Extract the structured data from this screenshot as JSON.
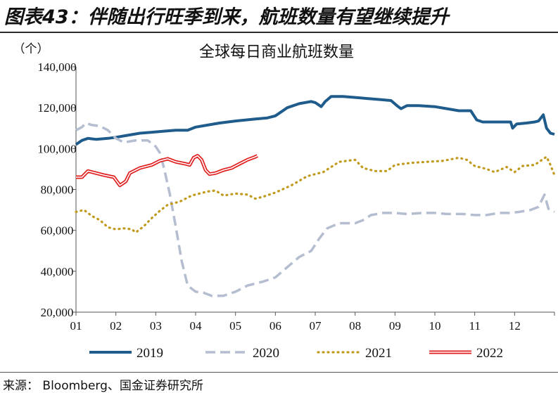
{
  "figure_title": "图表43：伴随出行旺季到来，航班数量有望继续提升",
  "source": "来源： Bloomberg、国金证券研究所",
  "colors": {
    "s2019": "#1f5c8b",
    "s2020": "#b4bed0",
    "s2021": "#c09a1c",
    "s2022": "#e02020",
    "axis": "#555555",
    "text": "#111111"
  },
  "chart_data": {
    "type": "line",
    "title": "全球每日商业航班数量",
    "y_unit": "（个）",
    "ylim": [
      20000,
      140000
    ],
    "y_ticks": [
      "20,000",
      "40,000",
      "60,000",
      "80,000",
      "100,000",
      "120,000",
      "140,000"
    ],
    "x_range": [
      1,
      13
    ],
    "x_ticks": [
      "01",
      "02",
      "03",
      "04",
      "05",
      "06",
      "07",
      "08",
      "09",
      "10",
      "11",
      "12"
    ],
    "grid": false,
    "legend_position": "bottom",
    "series": [
      {
        "name": "2019",
        "style": "solid",
        "points": [
          [
            1.0,
            102000
          ],
          [
            1.15,
            104000
          ],
          [
            1.3,
            105000
          ],
          [
            1.5,
            104500
          ],
          [
            1.8,
            105000
          ],
          [
            2.0,
            105500
          ],
          [
            2.3,
            106500
          ],
          [
            2.6,
            107500
          ],
          [
            2.9,
            108000
          ],
          [
            3.2,
            108500
          ],
          [
            3.5,
            109000
          ],
          [
            3.8,
            109000
          ],
          [
            4.0,
            110500
          ],
          [
            4.3,
            111500
          ],
          [
            4.6,
            112500
          ],
          [
            5.0,
            113500
          ],
          [
            5.5,
            114500
          ],
          [
            5.8,
            115000
          ],
          [
            6.0,
            116000
          ],
          [
            6.3,
            120000
          ],
          [
            6.6,
            122000
          ],
          [
            6.9,
            123000
          ],
          [
            7.0,
            122500
          ],
          [
            7.15,
            120500
          ],
          [
            7.25,
            123000
          ],
          [
            7.4,
            125500
          ],
          [
            7.7,
            125500
          ],
          [
            8.0,
            125000
          ],
          [
            8.3,
            124500
          ],
          [
            8.6,
            124000
          ],
          [
            8.9,
            123500
          ],
          [
            9.05,
            121000
          ],
          [
            9.15,
            119500
          ],
          [
            9.3,
            121000
          ],
          [
            9.6,
            121000
          ],
          [
            10.0,
            120500
          ],
          [
            10.3,
            119500
          ],
          [
            10.6,
            118500
          ],
          [
            10.9,
            118500
          ],
          [
            11.05,
            114000
          ],
          [
            11.2,
            113000
          ],
          [
            11.5,
            113000
          ],
          [
            11.8,
            113000
          ],
          [
            11.9,
            113000
          ],
          [
            11.95,
            110000
          ],
          [
            12.05,
            112000
          ],
          [
            12.3,
            112500
          ],
          [
            12.5,
            113000
          ],
          [
            12.6,
            113500
          ],
          [
            12.72,
            116500
          ],
          [
            12.8,
            110000
          ],
          [
            12.9,
            107500
          ],
          [
            13.0,
            107000
          ]
        ]
      },
      {
        "name": "2020",
        "style": "dashed",
        "points": [
          [
            1.0,
            109000
          ],
          [
            1.15,
            110500
          ],
          [
            1.25,
            112500
          ],
          [
            1.4,
            111500
          ],
          [
            1.6,
            111000
          ],
          [
            1.8,
            109000
          ],
          [
            2.0,
            105000
          ],
          [
            2.2,
            103000
          ],
          [
            2.5,
            104000
          ],
          [
            2.8,
            104000
          ],
          [
            3.0,
            101000
          ],
          [
            3.1,
            98000
          ],
          [
            3.2,
            91000
          ],
          [
            3.35,
            78000
          ],
          [
            3.5,
            62000
          ],
          [
            3.65,
            45000
          ],
          [
            3.8,
            33000
          ],
          [
            4.0,
            30000
          ],
          [
            4.2,
            29500
          ],
          [
            4.4,
            28000
          ],
          [
            4.7,
            28000
          ],
          [
            5.0,
            30000
          ],
          [
            5.3,
            33000
          ],
          [
            5.7,
            35000
          ],
          [
            6.0,
            37000
          ],
          [
            6.3,
            42000
          ],
          [
            6.6,
            47000
          ],
          [
            6.9,
            50000
          ],
          [
            7.1,
            56000
          ],
          [
            7.3,
            61000
          ],
          [
            7.6,
            63500
          ],
          [
            8.0,
            63500
          ],
          [
            8.2,
            65000
          ],
          [
            8.4,
            67500
          ],
          [
            8.7,
            68500
          ],
          [
            9.0,
            68500
          ],
          [
            9.3,
            68000
          ],
          [
            9.7,
            68500
          ],
          [
            10.0,
            68500
          ],
          [
            10.3,
            68000
          ],
          [
            10.7,
            68000
          ],
          [
            11.0,
            67500
          ],
          [
            11.3,
            67500
          ],
          [
            11.6,
            68500
          ],
          [
            11.9,
            68500
          ],
          [
            12.1,
            69000
          ],
          [
            12.4,
            70000
          ],
          [
            12.6,
            71500
          ],
          [
            12.75,
            77500
          ],
          [
            12.85,
            70500
          ],
          [
            13.0,
            69000
          ]
        ]
      },
      {
        "name": "2021",
        "style": "dotted",
        "points": [
          [
            1.0,
            69000
          ],
          [
            1.2,
            70000
          ],
          [
            1.4,
            67000
          ],
          [
            1.6,
            65000
          ],
          [
            1.8,
            61500
          ],
          [
            2.0,
            60500
          ],
          [
            2.2,
            61000
          ],
          [
            2.4,
            60500
          ],
          [
            2.5,
            59000
          ],
          [
            2.7,
            62000
          ],
          [
            2.9,
            66000
          ],
          [
            3.1,
            69500
          ],
          [
            3.3,
            72500
          ],
          [
            3.6,
            74000
          ],
          [
            3.9,
            77000
          ],
          [
            4.3,
            79000
          ],
          [
            4.5,
            79500
          ],
          [
            4.7,
            77000
          ],
          [
            5.0,
            78000
          ],
          [
            5.3,
            77500
          ],
          [
            5.5,
            75500
          ],
          [
            5.7,
            76500
          ],
          [
            6.0,
            78500
          ],
          [
            6.4,
            82000
          ],
          [
            6.8,
            86500
          ],
          [
            7.2,
            88500
          ],
          [
            7.6,
            93500
          ],
          [
            8.0,
            94500
          ],
          [
            8.2,
            90500
          ],
          [
            8.5,
            89000
          ],
          [
            8.8,
            89000
          ],
          [
            9.0,
            92000
          ],
          [
            9.4,
            93000
          ],
          [
            9.8,
            93500
          ],
          [
            10.2,
            94000
          ],
          [
            10.6,
            95500
          ],
          [
            10.8,
            94500
          ],
          [
            11.0,
            91500
          ],
          [
            11.3,
            90000
          ],
          [
            11.5,
            88500
          ],
          [
            11.8,
            91000
          ],
          [
            12.0,
            88500
          ],
          [
            12.2,
            91500
          ],
          [
            12.5,
            92000
          ],
          [
            12.8,
            96000
          ],
          [
            12.9,
            92000
          ],
          [
            13.0,
            87000
          ]
        ]
      },
      {
        "name": "2022",
        "style": "double",
        "points": [
          [
            1.0,
            86000
          ],
          [
            1.15,
            86000
          ],
          [
            1.3,
            89000
          ],
          [
            1.5,
            88000
          ],
          [
            1.7,
            87000
          ],
          [
            1.95,
            86000
          ],
          [
            2.1,
            82000
          ],
          [
            2.25,
            84000
          ],
          [
            2.35,
            88000
          ],
          [
            2.6,
            90500
          ],
          [
            2.9,
            92000
          ],
          [
            3.1,
            94000
          ],
          [
            3.3,
            95000
          ],
          [
            3.5,
            93500
          ],
          [
            3.75,
            92500
          ],
          [
            3.85,
            92000
          ],
          [
            3.95,
            95500
          ],
          [
            4.05,
            96500
          ],
          [
            4.15,
            94500
          ],
          [
            4.25,
            89500
          ],
          [
            4.35,
            87500
          ],
          [
            4.5,
            88000
          ],
          [
            4.7,
            89500
          ],
          [
            4.9,
            90500
          ],
          [
            5.1,
            92500
          ],
          [
            5.3,
            94500
          ],
          [
            5.5,
            96000
          ],
          [
            5.55,
            96500
          ]
        ]
      }
    ]
  }
}
